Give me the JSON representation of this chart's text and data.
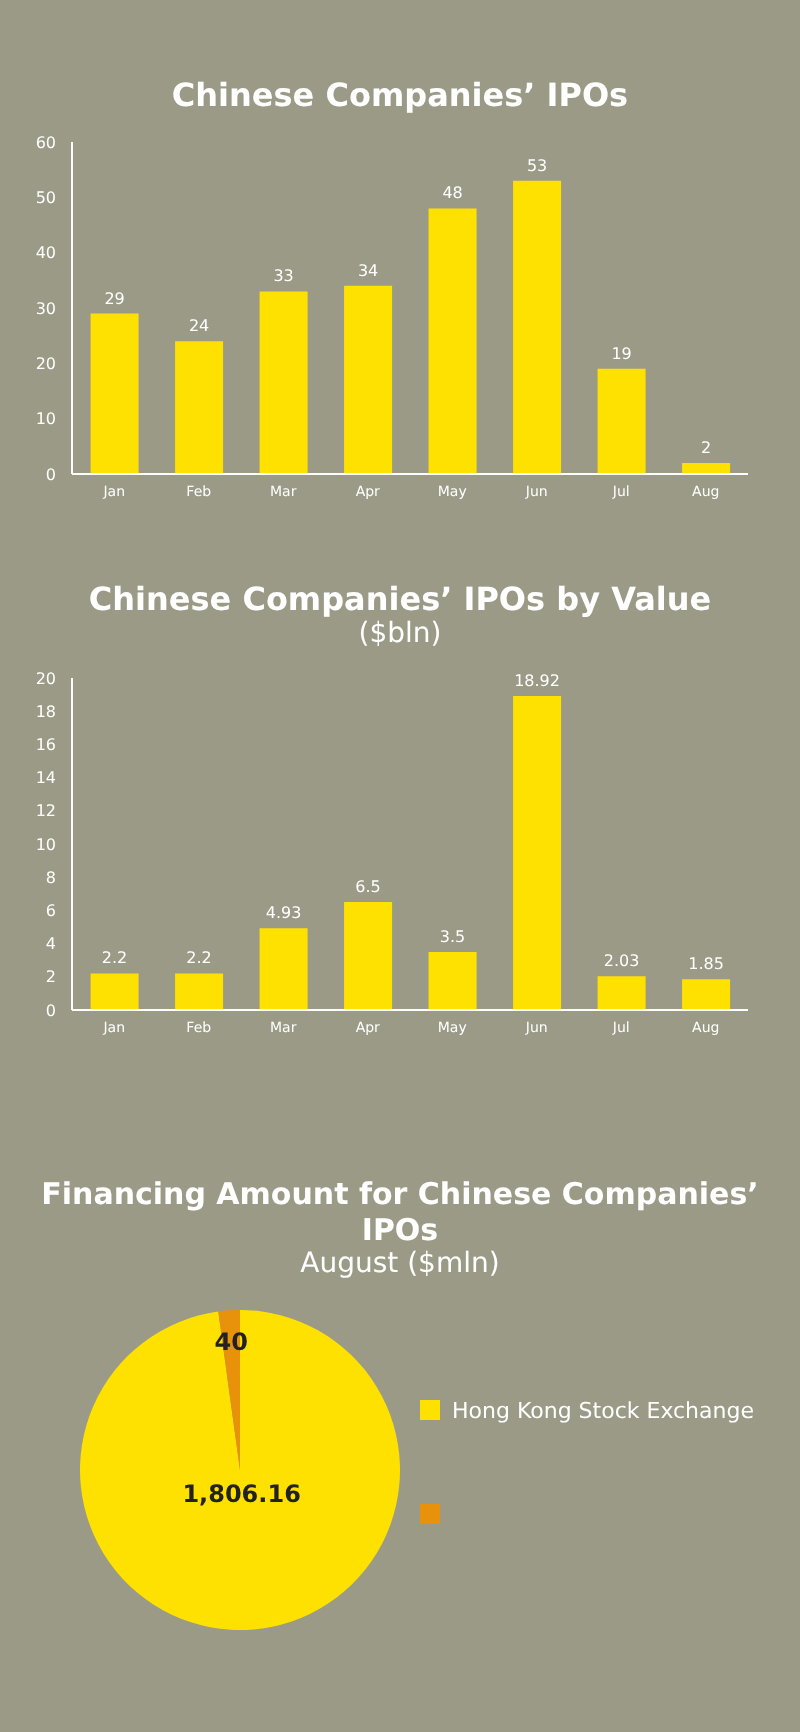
{
  "chart_data": [
    {
      "type": "bar",
      "title": "Chinese Companies’ IPOs",
      "categories": [
        "Jan",
        "Feb",
        "Mar",
        "Apr",
        "May",
        "Jun",
        "Jul",
        "Aug"
      ],
      "values": [
        29,
        24,
        33,
        34,
        48,
        53,
        19,
        2
      ],
      "color": "#ffe100",
      "ylim": [
        0,
        60
      ],
      "yticks": [
        0,
        10,
        20,
        30,
        40,
        50,
        60
      ],
      "data_labels": true
    },
    {
      "type": "bar",
      "title": "Chinese Companies’ IPOs by Value",
      "subtitle": "($bln)",
      "categories": [
        "Jan",
        "Feb",
        "Mar",
        "Apr",
        "May",
        "Jun",
        "Jul",
        "Aug"
      ],
      "values": [
        2.2,
        2.2,
        4.93,
        6.5,
        3.5,
        18.92,
        2.03,
        1.85
      ],
      "color": "#ffe100",
      "ylim": [
        0,
        20
      ],
      "yticks": [
        0,
        2,
        4,
        6,
        8,
        10,
        12,
        14,
        16,
        18,
        20
      ],
      "data_labels": true
    },
    {
      "type": "pie",
      "title": "Financing Amount for Chinese Companies’ IPOs",
      "subtitle": "August ($mln)",
      "categories": [
        "Hong Kong Stock Exchange",
        null
      ],
      "values": [
        1806.16,
        40
      ],
      "colors": [
        "#ffe100",
        "#e8920c"
      ],
      "value_labels": [
        "1,806.16",
        "40"
      ],
      "legend": "right"
    }
  ]
}
